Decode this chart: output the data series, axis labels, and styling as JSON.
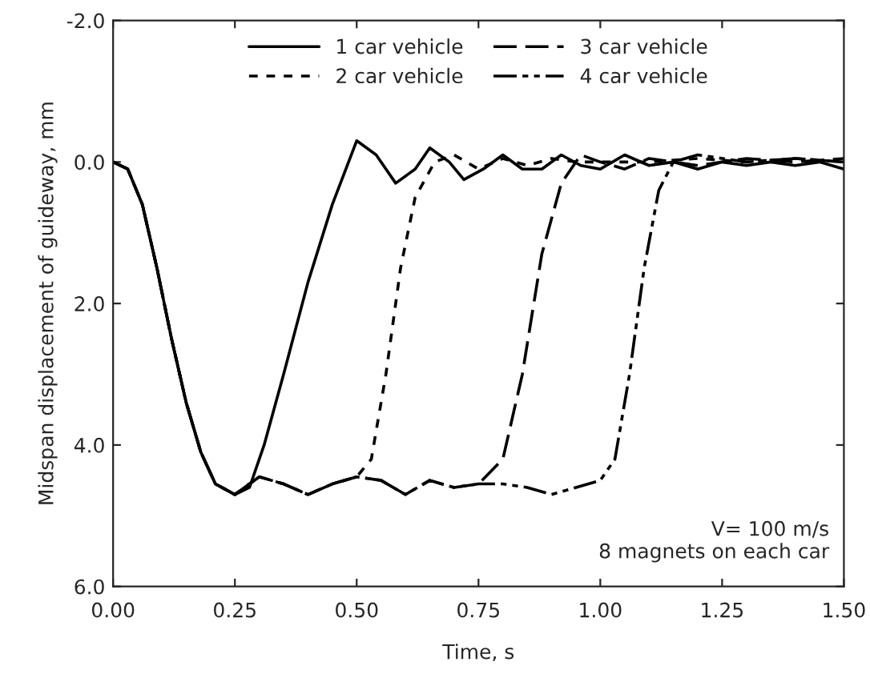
{
  "chart_data": {
    "type": "line",
    "xlabel": "Time, s",
    "ylabel": "Midspan displacement of guideway, mm",
    "xlim": [
      0,
      1.5
    ],
    "ylim": [
      6,
      -2
    ],
    "xticks": [
      {
        "value": 0,
        "label": "0.00"
      },
      {
        "value": 0.25,
        "label": "0.25"
      },
      {
        "value": 0.5,
        "label": "0.50"
      },
      {
        "value": 0.75,
        "label": "0.75"
      },
      {
        "value": 1.0,
        "label": "1.00"
      },
      {
        "value": 1.25,
        "label": "1.25"
      },
      {
        "value": 1.5,
        "label": "1.50"
      }
    ],
    "yticks": [
      {
        "value": -2,
        "label": "-2.0"
      },
      {
        "value": 0,
        "label": "0.0"
      },
      {
        "value": 2,
        "label": "2.0"
      },
      {
        "value": 4,
        "label": "4.0"
      },
      {
        "value": 6,
        "label": "6.0"
      }
    ],
    "grid": false,
    "legend": "top",
    "annotations": [
      "V= 100 m/s\n8 magnets on each car"
    ],
    "series": [
      {
        "name": "1 car vehicle",
        "color": "#000000",
        "line_style": "solid",
        "x": [
          0,
          0.03,
          0.06,
          0.09,
          0.12,
          0.15,
          0.18,
          0.21,
          0.25,
          0.28,
          0.31,
          0.35,
          0.4,
          0.45,
          0.5,
          0.54,
          0.58,
          0.62,
          0.65,
          0.69,
          0.72,
          0.76,
          0.8,
          0.84,
          0.88,
          0.92,
          0.96,
          1.0,
          1.05,
          1.1,
          1.15,
          1.2,
          1.25,
          1.3,
          1.35,
          1.4,
          1.45,
          1.5
        ],
        "values": [
          0,
          0.1,
          0.6,
          1.5,
          2.5,
          3.4,
          4.1,
          4.55,
          4.7,
          4.6,
          4.0,
          3.0,
          1.7,
          0.6,
          -0.3,
          -0.1,
          0.3,
          0.1,
          -0.2,
          0.0,
          0.25,
          0.1,
          -0.1,
          0.1,
          0.1,
          -0.1,
          0.05,
          0.1,
          -0.1,
          0.05,
          0.0,
          0.1,
          0.0,
          0.05,
          0.0,
          0.05,
          0.0,
          0.1
        ]
      },
      {
        "name": "2 car vehicle",
        "color": "#000000",
        "line_style": "dotted",
        "x": [
          0,
          0.03,
          0.06,
          0.09,
          0.12,
          0.15,
          0.18,
          0.21,
          0.25,
          0.3,
          0.35,
          0.4,
          0.45,
          0.5,
          0.53,
          0.56,
          0.59,
          0.62,
          0.66,
          0.7,
          0.75,
          0.8,
          0.85,
          0.9,
          0.95,
          1.0,
          1.1,
          1.2,
          1.3,
          1.4,
          1.5
        ],
        "values": [
          0,
          0.1,
          0.6,
          1.5,
          2.5,
          3.4,
          4.1,
          4.55,
          4.7,
          4.45,
          4.55,
          4.7,
          4.55,
          4.45,
          4.2,
          3.0,
          1.5,
          0.5,
          0.0,
          -0.1,
          0.1,
          -0.05,
          0.05,
          -0.05,
          0.0,
          0.0,
          0.0,
          -0.05,
          0.0,
          -0.05,
          0.0
        ]
      },
      {
        "name": "3 car vehicle",
        "color": "#000000",
        "line_style": "dashed",
        "x": [
          0,
          0.03,
          0.06,
          0.09,
          0.12,
          0.15,
          0.18,
          0.21,
          0.25,
          0.3,
          0.35,
          0.4,
          0.45,
          0.5,
          0.55,
          0.6,
          0.65,
          0.7,
          0.75,
          0.8,
          0.84,
          0.88,
          0.92,
          0.96,
          1.0,
          1.05,
          1.1,
          1.2,
          1.3,
          1.4,
          1.5
        ],
        "values": [
          0,
          0.1,
          0.6,
          1.5,
          2.5,
          3.4,
          4.1,
          4.55,
          4.7,
          4.45,
          4.55,
          4.7,
          4.55,
          4.45,
          4.5,
          4.7,
          4.5,
          4.6,
          4.55,
          4.2,
          3.0,
          1.3,
          0.3,
          -0.1,
          0.0,
          0.1,
          -0.05,
          0.05,
          -0.05,
          0.0,
          -0.05
        ]
      },
      {
        "name": "4 car vehicle",
        "color": "#000000",
        "line_style": "dashdot",
        "x": [
          0,
          0.03,
          0.06,
          0.09,
          0.12,
          0.15,
          0.18,
          0.21,
          0.25,
          0.3,
          0.35,
          0.4,
          0.45,
          0.5,
          0.55,
          0.6,
          0.65,
          0.7,
          0.75,
          0.8,
          0.85,
          0.9,
          0.95,
          1.0,
          1.03,
          1.06,
          1.09,
          1.12,
          1.15,
          1.2,
          1.3,
          1.4,
          1.5
        ],
        "values": [
          0,
          0.1,
          0.6,
          1.5,
          2.5,
          3.4,
          4.1,
          4.55,
          4.7,
          4.45,
          4.55,
          4.7,
          4.55,
          4.45,
          4.5,
          4.7,
          4.5,
          4.6,
          4.55,
          4.55,
          4.6,
          4.7,
          4.6,
          4.5,
          4.2,
          3.0,
          1.5,
          0.4,
          0.0,
          -0.1,
          0.0,
          -0.05,
          0.0
        ]
      }
    ]
  }
}
